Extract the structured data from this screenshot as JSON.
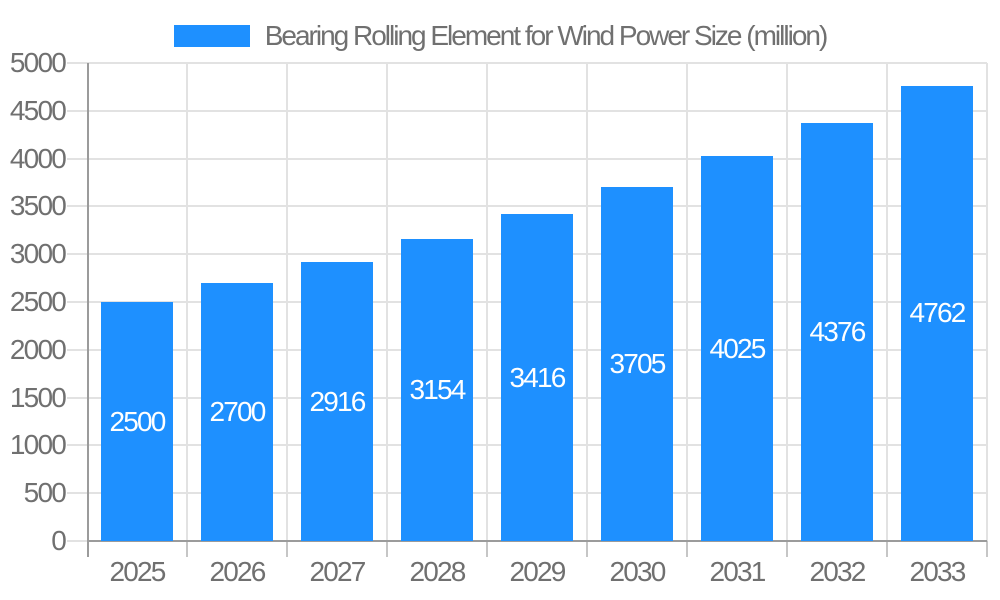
{
  "chart_data": {
    "type": "bar",
    "title": "Bearing Rolling Element for Wind Power Size (million)",
    "legend": {
      "position": "top",
      "entries": [
        {
          "label": "Bearing Rolling Element for Wind Power Size (million)",
          "swatch_color": "#1E90FF"
        }
      ]
    },
    "categories": [
      "2025",
      "2026",
      "2027",
      "2028",
      "2029",
      "2030",
      "2031",
      "2032",
      "2033"
    ],
    "values": [
      2500,
      2700,
      2916,
      3154,
      3416,
      3705,
      4025,
      4376,
      4762
    ],
    "value_labels": [
      "2500",
      "2700",
      "2916",
      "3154",
      "3416",
      "3705",
      "4025",
      "4376",
      "4762"
    ],
    "series_name": "Bearing Rolling Element for Wind Power Size (million)",
    "xlabel": "",
    "ylabel": "",
    "ylim": [
      0,
      5000
    ],
    "yticks": [
      0,
      500,
      1000,
      1500,
      2000,
      2500,
      3000,
      3500,
      4000,
      4500,
      5000
    ],
    "grid": true,
    "colors": {
      "bar": "#1E90FF",
      "value_label": "#FFFFFF",
      "axis_text": "#707070",
      "grid_line": "#E2E2E2",
      "axis_line": "#9B9B9B",
      "tick_mark": "#C6C6C6",
      "background": "#FFFFFF"
    }
  }
}
